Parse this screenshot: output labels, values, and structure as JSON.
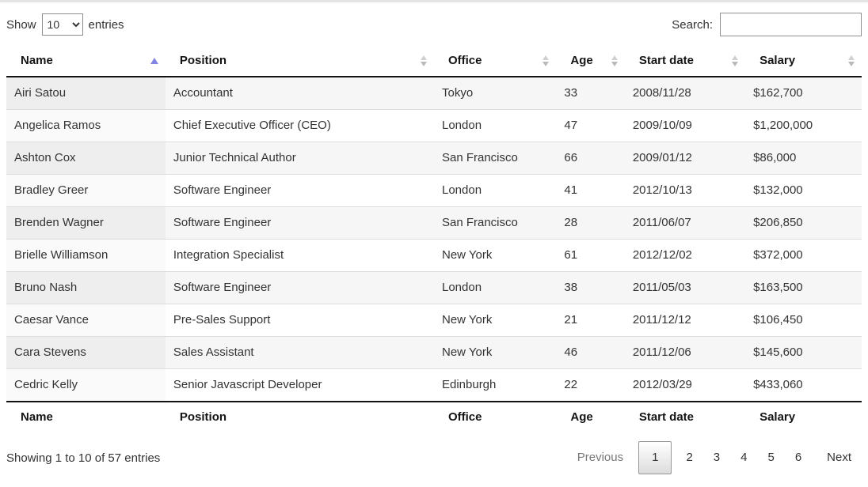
{
  "controls": {
    "show_label": "Show",
    "page_size": "10",
    "entries_label": "entries",
    "search_label": "Search:",
    "search_value": ""
  },
  "table": {
    "columns": [
      {
        "label": "Name",
        "sort": "asc"
      },
      {
        "label": "Position",
        "sort": "none"
      },
      {
        "label": "Office",
        "sort": "none"
      },
      {
        "label": "Age",
        "sort": "none"
      },
      {
        "label": "Start date",
        "sort": "none"
      },
      {
        "label": "Salary",
        "sort": "none"
      }
    ],
    "rows": [
      [
        "Airi Satou",
        "Accountant",
        "Tokyo",
        "33",
        "2008/11/28",
        "$162,700"
      ],
      [
        "Angelica Ramos",
        "Chief Executive Officer (CEO)",
        "London",
        "47",
        "2009/10/09",
        "$1,200,000"
      ],
      [
        "Ashton Cox",
        "Junior Technical Author",
        "San Francisco",
        "66",
        "2009/01/12",
        "$86,000"
      ],
      [
        "Bradley Greer",
        "Software Engineer",
        "London",
        "41",
        "2012/10/13",
        "$132,000"
      ],
      [
        "Brenden Wagner",
        "Software Engineer",
        "San Francisco",
        "28",
        "2011/06/07",
        "$206,850"
      ],
      [
        "Brielle Williamson",
        "Integration Specialist",
        "New York",
        "61",
        "2012/12/02",
        "$372,000"
      ],
      [
        "Bruno Nash",
        "Software Engineer",
        "London",
        "38",
        "2011/05/03",
        "$163,500"
      ],
      [
        "Caesar Vance",
        "Pre-Sales Support",
        "New York",
        "21",
        "2011/12/12",
        "$106,450"
      ],
      [
        "Cara Stevens",
        "Sales Assistant",
        "New York",
        "46",
        "2011/12/06",
        "$145,600"
      ],
      [
        "Cedric Kelly",
        "Senior Javascript Developer",
        "Edinburgh",
        "22",
        "2012/03/29",
        "$433,060"
      ]
    ],
    "footer_columns": [
      "Name",
      "Position",
      "Office",
      "Age",
      "Start date",
      "Salary"
    ]
  },
  "info": {
    "text": "Showing 1 to 10 of 57 entries"
  },
  "pagination": {
    "previous_label": "Previous",
    "pages": [
      "1",
      "2",
      "3",
      "4",
      "5",
      "6"
    ],
    "current_page": "1",
    "next_label": "Next"
  },
  "colors": {
    "sort_asc_arrow": "#8185e2",
    "sort_idle_arrow": "#c4c4c4",
    "header_border": "#121212",
    "row_divider": "#dddddd",
    "stripe_bg": "#f6f6f6",
    "sorted_odd_bg": "#eeeeee",
    "sorted_even_bg": "#fafafa"
  }
}
